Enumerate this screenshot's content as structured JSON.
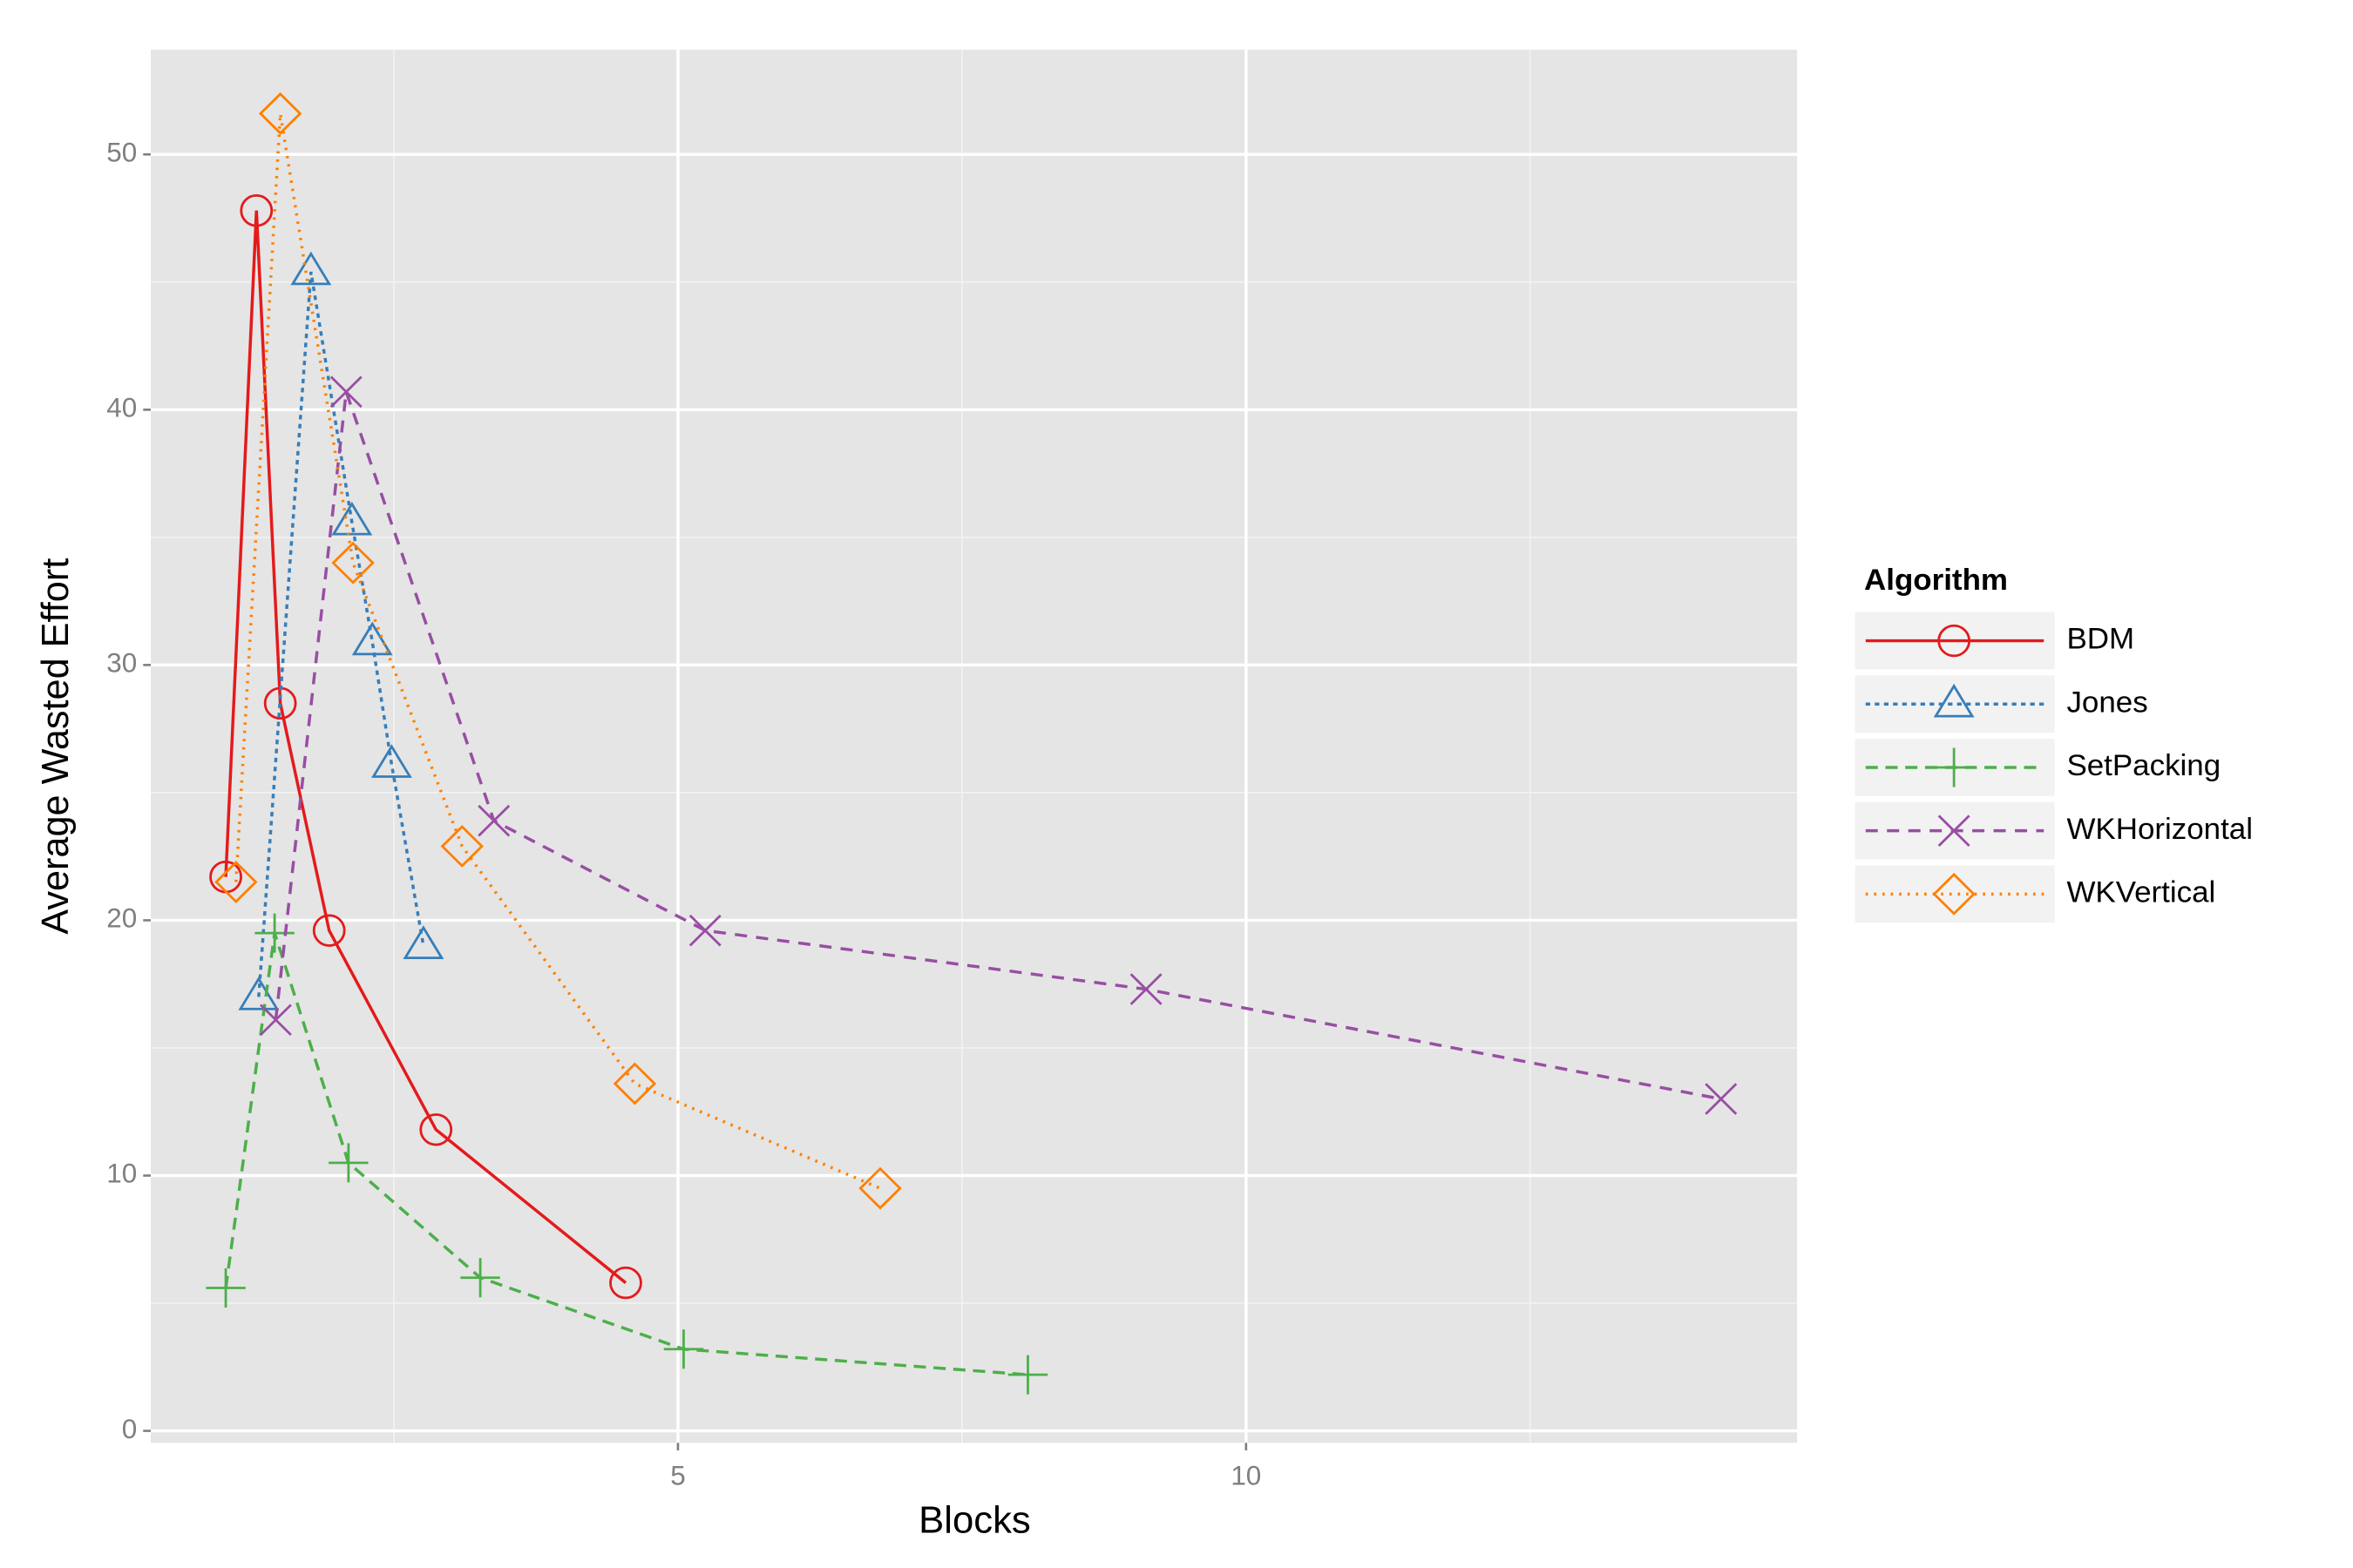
{
  "chart_data": {
    "type": "line",
    "x_label": "Blocks",
    "y_label": "Average Wasted Effort",
    "legend_title": "Algorithm",
    "legend_position": "right",
    "xlim": [
      0.36,
      14.85
    ],
    "ylim": [
      -0.47,
      54.1
    ],
    "xticks": [
      5,
      10
    ],
    "yticks": [
      0,
      10,
      20,
      30,
      40,
      50
    ],
    "minor_xticks": [
      2.5,
      7.5,
      12.5
    ],
    "minor_yticks": [
      5,
      15,
      25,
      35,
      45
    ],
    "grid": true,
    "series": [
      {
        "name": "BDM",
        "color": "#e41a1c",
        "linestyle": "solid",
        "marker": "circle",
        "x": [
          1.02,
          1.29,
          1.5,
          1.93,
          2.87,
          4.54
        ],
        "values": [
          21.7,
          47.8,
          28.5,
          19.6,
          11.8,
          5.8
        ]
      },
      {
        "name": "Jones",
        "color": "#377eb8",
        "linestyle": "dotted",
        "marker": "triangle",
        "x": [
          1.31,
          1.77,
          2.13,
          2.31,
          2.48,
          2.76
        ],
        "values": [
          17.0,
          45.4,
          35.6,
          30.9,
          26.1,
          19.0
        ]
      },
      {
        "name": "SetPacking",
        "color": "#4daf4a",
        "linestyle": "dashed",
        "marker": "plus",
        "x": [
          1.02,
          1.45,
          2.1,
          3.26,
          5.05,
          8.08
        ],
        "values": [
          5.6,
          19.5,
          10.5,
          6.0,
          3.2,
          2.2
        ]
      },
      {
        "name": "WKHorizontal",
        "color": "#984ea3",
        "linestyle": "longdash",
        "marker": "cross",
        "x": [
          1.46,
          2.08,
          3.38,
          5.24,
          9.12,
          14.18
        ],
        "values": [
          16.1,
          40.7,
          23.9,
          19.6,
          17.3,
          13.0
        ]
      },
      {
        "name": "WKVertical",
        "color": "#ff7f00",
        "linestyle": "dotted-fine",
        "marker": "diamond",
        "x": [
          1.11,
          1.5,
          2.14,
          3.1,
          4.62,
          6.78
        ],
        "values": [
          21.5,
          51.6,
          34.0,
          22.9,
          13.6,
          9.5
        ]
      }
    ]
  }
}
